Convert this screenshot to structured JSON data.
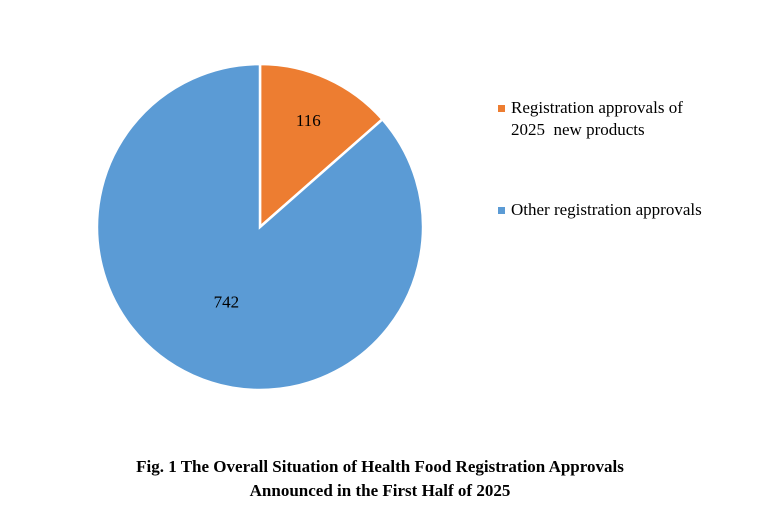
{
  "chart_data": {
    "type": "pie",
    "title": "",
    "slices": [
      {
        "name": "Registration approvals of 2025  new products",
        "value": 116,
        "color": "#ED7D31"
      },
      {
        "name": "Other registration approvals",
        "value": 742,
        "color": "#5B9BD5"
      }
    ],
    "start_angle": "12 o'clock, clockwise",
    "data_labels": true,
    "legend_placement": "right"
  },
  "caption": {
    "line1": "Fig. 1 The Overall Situation of Health Food Registration Approvals",
    "line2": "Announced in the First Half of 2025"
  }
}
